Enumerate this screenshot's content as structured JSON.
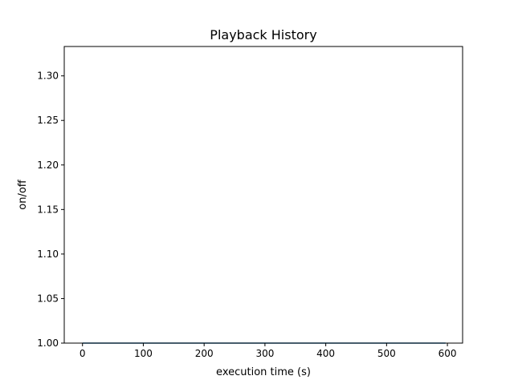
{
  "chart_data": {
    "type": "line",
    "title": "Playback History",
    "xlabel": "execution time (s)",
    "ylabel": "on/off",
    "xlim": [
      -30,
      625
    ],
    "ylim": [
      1.0,
      1.333
    ],
    "xticks": [
      0,
      100,
      200,
      300,
      400,
      500,
      600
    ],
    "xtick_labels": [
      "0",
      "100",
      "200",
      "300",
      "400",
      "500",
      "600"
    ],
    "yticks": [
      1.0,
      1.05,
      1.1,
      1.15,
      1.2,
      1.25,
      1.3
    ],
    "ytick_labels": [
      "1.00",
      "1.05",
      "1.10",
      "1.15",
      "1.20",
      "1.25",
      "1.30"
    ],
    "grid": false,
    "legend": false,
    "series": [
      {
        "color": "#1f77b4",
        "x": [
          0,
          597
        ],
        "y": [
          1.0,
          1.0
        ]
      }
    ]
  }
}
